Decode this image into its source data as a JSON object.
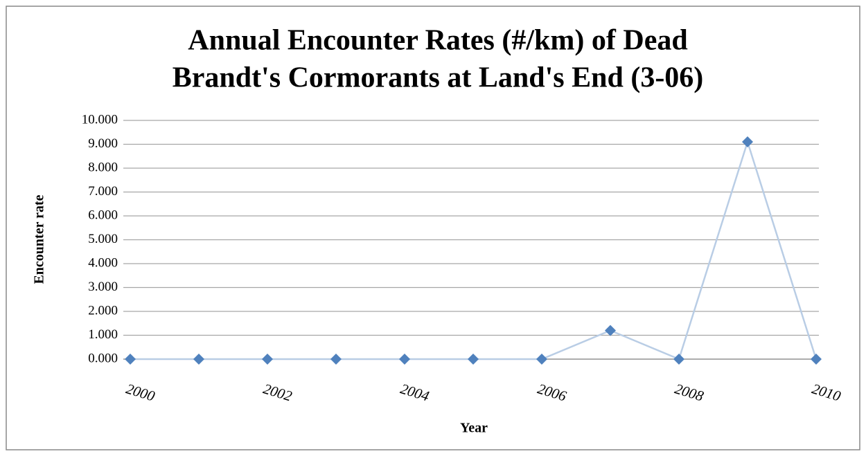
{
  "chart_data": {
    "type": "line",
    "title": [
      "Annual Encounter Rates (#/km) of Dead",
      "Brandt's Cormorants at Land's End (3-06)"
    ],
    "x_label": "Year",
    "y_label": "Encounter rate",
    "x": [
      2000,
      2001,
      2002,
      2003,
      2004,
      2005,
      2006,
      2007,
      2008,
      2009,
      2010
    ],
    "series": [
      {
        "name": "Encounter rate",
        "line_color": "#b9cde5",
        "marker_color": "#4f81bd",
        "values": [
          0,
          0,
          0,
          0,
          0,
          0,
          0,
          1.2,
          0,
          9.1,
          0
        ]
      }
    ],
    "xlim": [
      2000,
      2010
    ],
    "xticks": [
      2000,
      2002,
      2004,
      2006,
      2008,
      2010
    ],
    "ylim": [
      0,
      10
    ],
    "yticks": [
      {
        "value": 0,
        "label": "0.000"
      },
      {
        "value": 1,
        "label": "1.000"
      },
      {
        "value": 2,
        "label": "2.000"
      },
      {
        "value": 3,
        "label": "3.000"
      },
      {
        "value": 4,
        "label": "4.000"
      },
      {
        "value": 5,
        "label": "5.000"
      },
      {
        "value": 6,
        "label": "6.000"
      },
      {
        "value": 7,
        "label": "7.000"
      },
      {
        "value": 8,
        "label": "8.000"
      },
      {
        "value": 9,
        "label": "9.000"
      },
      {
        "value": 10,
        "label": "10.000"
      }
    ],
    "grid": true
  }
}
